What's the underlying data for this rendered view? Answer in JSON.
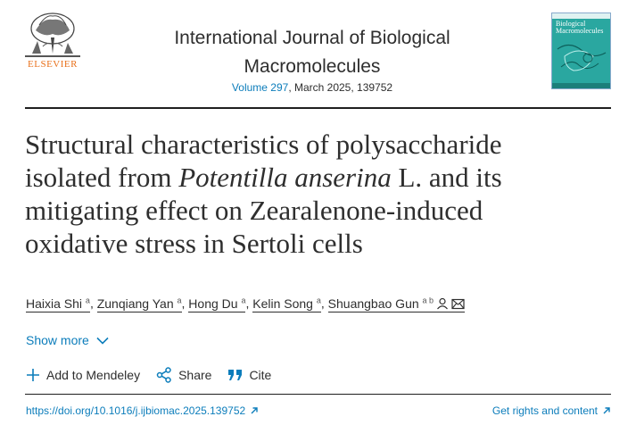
{
  "publisher": {
    "logo_word": "ELSEVIER"
  },
  "journal": {
    "title_line1": "International Journal of Biological",
    "title_line2": "Macromolecules",
    "volume_link": "Volume 297",
    "issue_rest": ", March 2025, 139752",
    "cover_title_line1": "Biological",
    "cover_title_line2": "Macromolecules"
  },
  "article": {
    "title_line1": "Structural characteristics of polysaccharide",
    "title_line2_pre": "isolated from ",
    "title_line2_italic": "Potentilla anserina",
    "title_line2_post": " L. and its",
    "title_line3": "mitigating effect on Zearalenone-induced",
    "title_line4": "oxidative stress in Sertoli cells"
  },
  "authors": [
    {
      "name": "Haixia Shi",
      "sup": "a"
    },
    {
      "name": "Zunqiang Yan",
      "sup": "a"
    },
    {
      "name": "Hong Du",
      "sup": "a"
    },
    {
      "name": "Kelin Song",
      "sup": "a"
    },
    {
      "name": "Shuangbao Gun",
      "sup": "a b"
    }
  ],
  "show_more": "Show more",
  "actions": {
    "mendeley": "Add to Mendeley",
    "share": "Share",
    "cite": "Cite"
  },
  "footer": {
    "doi": "https://doi.org/10.1016/j.ijbiomac.2025.139752",
    "rights": "Get rights and content"
  },
  "colors": {
    "link": "#0c7dbb",
    "elsevier_orange": "#e9711c",
    "cover_teal": "#2aa7a0"
  }
}
